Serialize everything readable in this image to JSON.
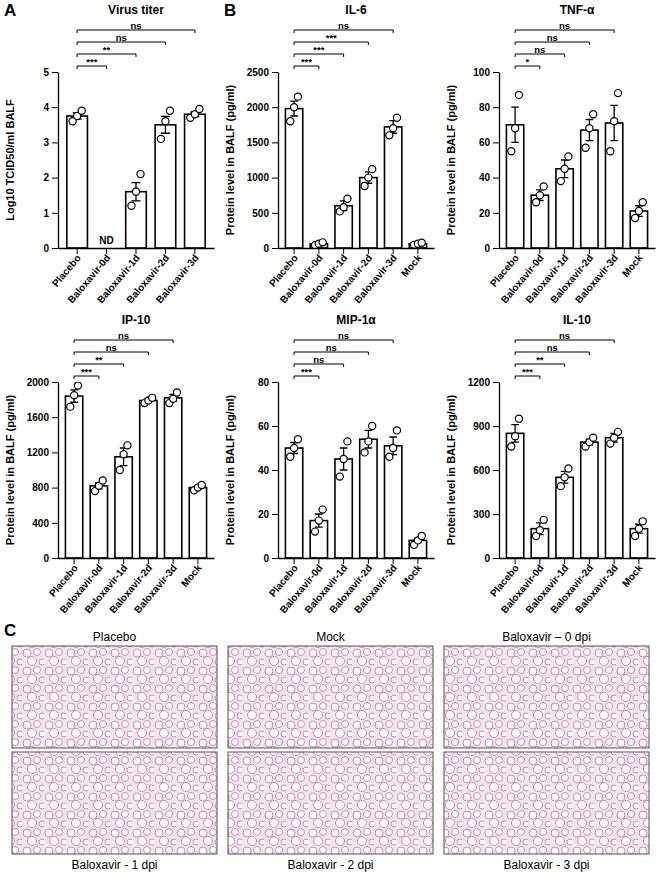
{
  "panel_labels": [
    "A",
    "B",
    "C"
  ],
  "chart_data": [
    {
      "type": "bar",
      "title": "Virus titer",
      "ylabel": "Log10 TCID50/ml BALF",
      "categories": [
        "Placebo",
        "Baloxavir-0d",
        "Baloxavir-1d",
        "Baloxavir-2d",
        "Baloxavir-3d"
      ],
      "values": [
        3.75,
        null,
        1.6,
        3.5,
        3.8
      ],
      "errors": [
        0.09,
        null,
        0.26,
        0.24,
        0.07
      ],
      "points": [
        [
          3.6,
          3.75,
          3.9
        ],
        [],
        [
          1.2,
          1.6,
          2.1
        ],
        [
          3.1,
          3.6,
          3.9
        ],
        [
          3.7,
          3.8,
          3.95
        ]
      ],
      "ylim": [
        0,
        5
      ],
      "yticks": [
        0,
        1,
        2,
        3,
        4,
        5
      ],
      "annotations": [
        {
          "text": "ND",
          "category": "Baloxavir-0d"
        }
      ],
      "comparisons": [
        {
          "groups": [
            "Placebo",
            "Baloxavir-0d"
          ],
          "label": "***"
        },
        {
          "groups": [
            "Placebo",
            "Baloxavir-1d"
          ],
          "label": "**"
        },
        {
          "groups": [
            "Placebo",
            "Baloxavir-2d"
          ],
          "label": "ns"
        },
        {
          "groups": [
            "Placebo",
            "Baloxavir-3d"
          ],
          "label": "ns"
        }
      ]
    },
    {
      "type": "bar",
      "title": "IL-6",
      "ylabel": "Protein level in BALF (pg/ml)",
      "categories": [
        "Placebo",
        "Baloxavir-0d",
        "Baloxavir-1d",
        "Baloxavir-2d",
        "Baloxavir-3d",
        "Mock"
      ],
      "values": [
        1980,
        60,
        600,
        1000,
        1720,
        60
      ],
      "errors": [
        105,
        20,
        70,
        80,
        90,
        15
      ],
      "points": [
        [
          1800,
          2000,
          2150
        ],
        [
          40,
          60,
          80
        ],
        [
          520,
          580,
          700
        ],
        [
          880,
          1000,
          1120
        ],
        [
          1600,
          1700,
          1850
        ],
        [
          45,
          60,
          75
        ]
      ],
      "ylim": [
        0,
        2500
      ],
      "yticks": [
        0,
        500,
        1000,
        1500,
        2000,
        2500
      ],
      "comparisons": [
        {
          "groups": [
            "Placebo",
            "Baloxavir-0d"
          ],
          "label": "***"
        },
        {
          "groups": [
            "Placebo",
            "Baloxavir-1d"
          ],
          "label": "***"
        },
        {
          "groups": [
            "Placebo",
            "Baloxavir-2d"
          ],
          "label": "***"
        },
        {
          "groups": [
            "Placebo",
            "Baloxavir-3d"
          ],
          "label": "ns"
        }
      ]
    },
    {
      "type": "bar",
      "title": "TNF-α",
      "ylabel": "Protein level in BALF (pg/ml)",
      "categories": [
        "Placebo",
        "Baloxavir-0d",
        "Baloxavir-1d",
        "Baloxavir-2d",
        "Baloxavir-3d",
        "Mock"
      ],
      "values": [
        70,
        30,
        45,
        67,
        71,
        21
      ],
      "errors": [
        10,
        3,
        5,
        6,
        10,
        3
      ],
      "points": [
        [
          55,
          68,
          87
        ],
        [
          26,
          30,
          35
        ],
        [
          38,
          45,
          52
        ],
        [
          57,
          68,
          76
        ],
        [
          55,
          72,
          88
        ],
        [
          17,
          21,
          26
        ]
      ],
      "ylim": [
        0,
        100
      ],
      "yticks": [
        0,
        20,
        40,
        60,
        80,
        100
      ],
      "comparisons": [
        {
          "groups": [
            "Placebo",
            "Baloxavir-0d"
          ],
          "label": "*"
        },
        {
          "groups": [
            "Placebo",
            "Baloxavir-1d"
          ],
          "label": "ns"
        },
        {
          "groups": [
            "Placebo",
            "Baloxavir-2d"
          ],
          "label": "ns"
        },
        {
          "groups": [
            "Placebo",
            "Baloxavir-3d"
          ],
          "label": "ns"
        }
      ]
    },
    {
      "type": "bar",
      "title": "IP-10",
      "ylabel": "Protein level in BALF (pg/ml)",
      "categories": [
        "Placebo",
        "Baloxavir-0d",
        "Baloxavir-1d",
        "Baloxavir-2d",
        "Baloxavir-3d",
        "Mock"
      ],
      "values": [
        1840,
        820,
        1150,
        1790,
        1820,
        800
      ],
      "errors": [
        70,
        35,
        100,
        20,
        40,
        20
      ],
      "points": [
        [
          1720,
          1850,
          1960
        ],
        [
          760,
          820,
          880
        ],
        [
          1000,
          1180,
          1280
        ],
        [
          1760,
          1790,
          1820
        ],
        [
          1760,
          1810,
          1880
        ],
        [
          770,
          800,
          830
        ]
      ],
      "ylim": [
        0,
        2000
      ],
      "yticks": [
        0,
        400,
        800,
        1200,
        1600,
        2000
      ],
      "comparisons": [
        {
          "groups": [
            "Placebo",
            "Baloxavir-0d"
          ],
          "label": "***"
        },
        {
          "groups": [
            "Placebo",
            "Baloxavir-1d"
          ],
          "label": "**"
        },
        {
          "groups": [
            "Placebo",
            "Baloxavir-2d"
          ],
          "label": "ns"
        },
        {
          "groups": [
            "Placebo",
            "Baloxavir-3d"
          ],
          "label": "ns"
        }
      ]
    },
    {
      "type": "bar",
      "title": "MIP-1α",
      "ylabel": "Protein level in BALF (pg/ml)",
      "categories": [
        "Placebo",
        "Baloxavir-0d",
        "Baloxavir-1d",
        "Baloxavir-2d",
        "Baloxavir-3d",
        "Mock"
      ],
      "values": [
        50,
        17,
        45,
        54,
        51,
        8
      ],
      "errors": [
        2.5,
        3,
        5,
        4,
        4,
        1
      ],
      "points": [
        [
          46,
          50,
          54
        ],
        [
          12,
          17,
          22
        ],
        [
          37,
          45,
          53
        ],
        [
          48,
          53,
          60
        ],
        [
          46,
          50,
          58
        ],
        [
          6,
          8,
          10
        ]
      ],
      "ylim": [
        0,
        80
      ],
      "yticks": [
        0,
        20,
        40,
        60,
        80
      ],
      "comparisons": [
        {
          "groups": [
            "Placebo",
            "Baloxavir-0d"
          ],
          "label": "***"
        },
        {
          "groups": [
            "Placebo",
            "Baloxavir-1d"
          ],
          "label": "ns"
        },
        {
          "groups": [
            "Placebo",
            "Baloxavir-2d"
          ],
          "label": "ns"
        },
        {
          "groups": [
            "Placebo",
            "Baloxavir-3d"
          ],
          "label": "ns"
        }
      ]
    },
    {
      "type": "bar",
      "title": "IL-10",
      "ylabel": "Protein level in BALF (pg/ml)",
      "categories": [
        "Placebo",
        "Baloxavir-0d",
        "Baloxavir-1d",
        "Baloxavir-2d",
        "Baloxavir-3d",
        "Mock"
      ],
      "values": [
        850,
        200,
        550,
        790,
        820,
        200
      ],
      "errors": [
        60,
        40,
        40,
        20,
        30,
        30
      ],
      "points": [
        [
          760,
          830,
          950
        ],
        [
          150,
          190,
          260
        ],
        [
          490,
          550,
          610
        ],
        [
          760,
          790,
          820
        ],
        [
          780,
          820,
          860
        ],
        [
          150,
          200,
          250
        ]
      ],
      "ylim": [
        0,
        1200
      ],
      "yticks": [
        0,
        300,
        600,
        900,
        1200
      ],
      "comparisons": [
        {
          "groups": [
            "Placebo",
            "Baloxavir-0d"
          ],
          "label": "***"
        },
        {
          "groups": [
            "Placebo",
            "Baloxavir-1d"
          ],
          "label": "**"
        },
        {
          "groups": [
            "Placebo",
            "Baloxavir-2d"
          ],
          "label": "ns"
        },
        {
          "groups": [
            "Placebo",
            "Baloxavir-3d"
          ],
          "label": "ns"
        }
      ]
    }
  ],
  "histology": {
    "images": [
      "Placebo",
      "Mock",
      "Baloxavir – 0 dpi",
      "Baloxavir - 1 dpi",
      "Baloxavir - 2 dpi",
      "Baloxavir - 3 dpi"
    ]
  }
}
